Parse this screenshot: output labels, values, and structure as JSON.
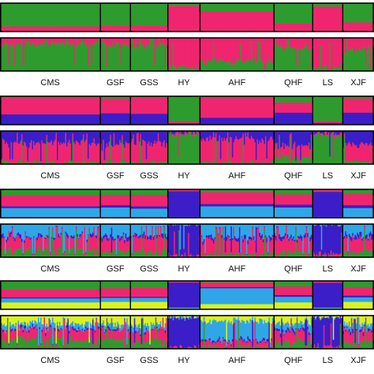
{
  "chart_data": {
    "type": "bar",
    "subtype": "stacked-membership (STRUCTURE-style) plots",
    "populations": [
      "CMS",
      "GSF",
      "GSS",
      "HY",
      "AHF",
      "QHF",
      "LS",
      "XJF"
    ],
    "population_weights": [
      0.244,
      0.073,
      0.091,
      0.078,
      0.18,
      0.094,
      0.073,
      0.076
    ],
    "palette": {
      "green": "#2e9b2e",
      "magenta": "#f0256f",
      "blue": "#3b1ec8",
      "cyan": "#2fa7e6",
      "yellow": "#dcf21d"
    },
    "panels": [
      {
        "k": 2,
        "cluster_colors": [
          "green",
          "magenta"
        ],
        "population_means": {
          "CMS": [
            0.82,
            0.18
          ],
          "GSF": [
            0.8,
            0.2
          ],
          "GSS": [
            0.78,
            0.22
          ],
          "HY": [
            0.1,
            0.9
          ],
          "AHF": [
            0.3,
            0.7
          ],
          "QHF": [
            0.72,
            0.28
          ],
          "LS": [
            0.12,
            0.88
          ],
          "XJF": [
            0.68,
            0.32
          ]
        },
        "show_population_labels": true
      },
      {
        "k": 3,
        "cluster_colors": [
          "green",
          "magenta",
          "blue"
        ],
        "population_means": {
          "CMS": [
            0.06,
            0.58,
            0.36
          ],
          "GSF": [
            0.08,
            0.52,
            0.4
          ],
          "GSS": [
            0.06,
            0.56,
            0.38
          ],
          "HY": [
            0.9,
            0.05,
            0.05
          ],
          "AHF": [
            0.06,
            0.7,
            0.24
          ],
          "QHF": [
            0.22,
            0.36,
            0.42
          ],
          "LS": [
            0.88,
            0.06,
            0.06
          ],
          "XJF": [
            0.08,
            0.5,
            0.42
          ]
        },
        "show_population_labels": true
      },
      {
        "k": 4,
        "cluster_colors": [
          "green",
          "magenta",
          "blue",
          "cyan"
        ],
        "population_means": {
          "CMS": [
            0.22,
            0.38,
            0.06,
            0.34
          ],
          "GSF": [
            0.2,
            0.36,
            0.08,
            0.36
          ],
          "GSS": [
            0.2,
            0.4,
            0.08,
            0.32
          ],
          "HY": [
            0.03,
            0.04,
            0.9,
            0.03
          ],
          "AHF": [
            0.1,
            0.42,
            0.08,
            0.4
          ],
          "QHF": [
            0.18,
            0.36,
            0.1,
            0.36
          ],
          "LS": [
            0.03,
            0.06,
            0.88,
            0.03
          ],
          "XJF": [
            0.16,
            0.4,
            0.1,
            0.34
          ]
        },
        "show_population_labels": true
      },
      {
        "k": 5,
        "cluster_colors": [
          "green",
          "magenta",
          "blue",
          "cyan",
          "yellow"
        ],
        "population_means": {
          "CMS": [
            0.3,
            0.28,
            0.04,
            0.14,
            0.24
          ],
          "GSF": [
            0.26,
            0.3,
            0.04,
            0.14,
            0.26
          ],
          "GSS": [
            0.24,
            0.32,
            0.04,
            0.14,
            0.26
          ],
          "HY": [
            0.03,
            0.03,
            0.88,
            0.03,
            0.03
          ],
          "AHF": [
            0.06,
            0.16,
            0.04,
            0.56,
            0.18
          ],
          "QHF": [
            0.2,
            0.3,
            0.06,
            0.2,
            0.24
          ],
          "LS": [
            0.03,
            0.04,
            0.87,
            0.03,
            0.03
          ],
          "XJF": [
            0.22,
            0.3,
            0.06,
            0.16,
            0.26
          ]
        },
        "show_population_labels": true
      }
    ]
  }
}
